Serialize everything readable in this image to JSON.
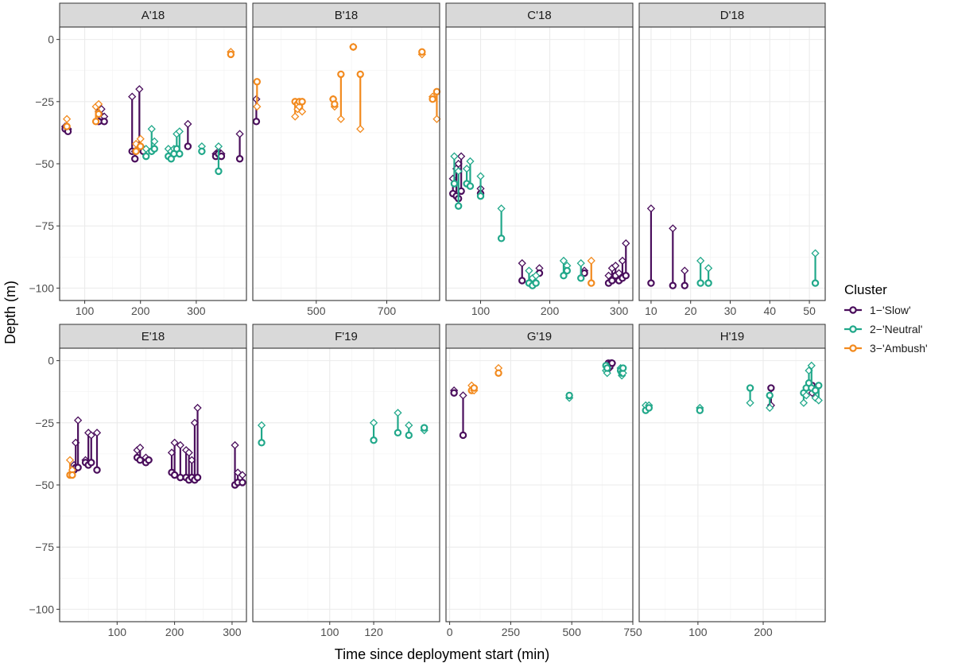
{
  "chart_data": {
    "type": "scatter",
    "layout": "faceted 2x4 small multiples, free x scales, shared y scale",
    "xlabel": "Time since deployment start (min)",
    "ylabel": "Depth (m)",
    "ylim": [
      -105,
      5
    ],
    "yticks": [
      0,
      -25,
      -50,
      -75,
      -100
    ],
    "ytick_labels": [
      "0",
      "−25",
      "−50",
      "−75",
      "−100"
    ],
    "grid": true,
    "marker_note": "circle = start depth, diamond = end depth, connected by a vertical segment",
    "legend": {
      "title": "Cluster",
      "position": "right",
      "entries": [
        {
          "label": "1−'Slow'",
          "color": "#4A0E5C"
        },
        {
          "label": "2−'Neutral'",
          "color": "#21A88A"
        },
        {
          "label": "3−'Ambush'",
          "color": "#F28A1E"
        }
      ]
    },
    "panels": [
      {
        "title": "A'18",
        "xlim": [
          55,
          390
        ],
        "xticks": [
          100,
          200,
          300
        ],
        "series": [
          {
            "cluster": "1−'Slow'",
            "points": [
              [
                65,
                -36,
                -35
              ],
              [
                70,
                -37,
                -36
              ],
              [
                125,
                -33,
                -29
              ],
              [
                130,
                -31,
                -28
              ],
              [
                135,
                -33,
                -31
              ],
              [
                185,
                -45,
                -23
              ],
              [
                190,
                -48,
                -45
              ],
              [
                198,
                -44,
                -20
              ],
              [
                205,
                -45,
                -44
              ],
              [
                285,
                -43,
                -34
              ],
              [
                335,
                -47,
                -46
              ],
              [
                340,
                -46,
                -45
              ],
              [
                345,
                -47,
                -46
              ],
              [
                378,
                -48,
                -38
              ]
            ]
          },
          {
            "cluster": "2−'Neutral'",
            "points": [
              [
                210,
                -47,
                -44
              ],
              [
                220,
                -45,
                -36
              ],
              [
                225,
                -44,
                -41
              ],
              [
                250,
                -47,
                -44
              ],
              [
                255,
                -48,
                -45
              ],
              [
                260,
                -46,
                -44
              ],
              [
                265,
                -44,
                -38
              ],
              [
                270,
                -46,
                -37
              ],
              [
                310,
                -45,
                -43
              ],
              [
                340,
                -53,
                -43
              ]
            ]
          },
          {
            "cluster": "3−'Ambush'",
            "points": [
              [
                68,
                -35,
                -32
              ],
              [
                120,
                -33,
                -27
              ],
              [
                125,
                -30,
                -26
              ],
              [
                192,
                -45,
                -42
              ],
              [
                200,
                -43,
                -40
              ],
              [
                362,
                -6,
                -5
              ]
            ]
          }
        ]
      },
      {
        "title": "B'18",
        "xlim": [
          320,
          850
        ],
        "xticks": [
          500,
          700
        ],
        "series": [
          {
            "cluster": "1−'Slow'",
            "points": [
              [
                330,
                -33,
                -24
              ]
            ]
          },
          {
            "cluster": "3−'Ambush'",
            "points": [
              [
                332,
                -17,
                -27
              ],
              [
                440,
                -25,
                -31
              ],
              [
                447,
                -26,
                -28
              ],
              [
                452,
                -25,
                -27
              ],
              [
                460,
                -25,
                -29
              ],
              [
                548,
                -24,
                -24
              ],
              [
                552,
                -26,
                -27
              ],
              [
                570,
                -14,
                -32
              ],
              [
                605,
                -3,
                -3
              ],
              [
                625,
                -14,
                -36
              ],
              [
                800,
                -5,
                -6
              ],
              [
                830,
                -24,
                -23
              ],
              [
                842,
                -21,
                -32
              ]
            ]
          }
        ]
      },
      {
        "title": "C'18",
        "xlim": [
          50,
          320
        ],
        "xticks": [
          100,
          200,
          300
        ],
        "series": [
          {
            "cluster": "1−'Slow'",
            "points": [
              [
                60,
                -62,
                -56
              ],
              [
                65,
                -63,
                -52
              ],
              [
                68,
                -64,
                -50
              ],
              [
                72,
                -61,
                -47
              ],
              [
                100,
                -62,
                -60
              ],
              [
                160,
                -97,
                -90
              ],
              [
                185,
                -94,
                -92
              ],
              [
                250,
                -94,
                -93
              ],
              [
                285,
                -98,
                -95
              ],
              [
                290,
                -97,
                -92
              ],
              [
                295,
                -95,
                -91
              ],
              [
                300,
                -97,
                -94
              ],
              [
                305,
                -96,
                -89
              ],
              [
                310,
                -95,
                -82
              ]
            ]
          },
          {
            "cluster": "2−'Neutral'",
            "points": [
              [
                62,
                -58,
                -47
              ],
              [
                68,
                -67,
                -53
              ],
              [
                80,
                -58,
                -52
              ],
              [
                85,
                -59,
                -49
              ],
              [
                100,
                -63,
                -55
              ],
              [
                130,
                -80,
                -68
              ],
              [
                170,
                -98,
                -93
              ],
              [
                175,
                -99,
                -96
              ],
              [
                180,
                -98,
                -95
              ],
              [
                220,
                -95,
                -89
              ],
              [
                225,
                -93,
                -91
              ],
              [
                245,
                -96,
                -90
              ]
            ]
          },
          {
            "cluster": "3−'Ambush'",
            "points": [
              [
                260,
                -98,
                -89
              ]
            ]
          }
        ]
      },
      {
        "title": "D'18",
        "xlim": [
          7,
          54
        ],
        "xticks": [
          10,
          20,
          30,
          40,
          50
        ],
        "series": [
          {
            "cluster": "1−'Slow'",
            "points": [
              [
                10,
                -98,
                -68
              ],
              [
                15.5,
                -99,
                -76
              ],
              [
                18.5,
                -99,
                -93
              ]
            ]
          },
          {
            "cluster": "2−'Neutral'",
            "points": [
              [
                22.5,
                -98,
                -89
              ],
              [
                24.5,
                -98,
                -92
              ],
              [
                51.5,
                -98,
                -86
              ]
            ]
          }
        ]
      },
      {
        "title": "E'18",
        "xlim": [
          0,
          325
        ],
        "xticks": [
          100,
          200,
          300
        ],
        "series": [
          {
            "cluster": "1−'Slow'",
            "points": [
              [
                25,
                -44,
                -42
              ],
              [
                28,
                -43,
                -33
              ],
              [
                32,
                -43,
                -24
              ],
              [
                45,
                -41,
                -40
              ],
              [
                50,
                -42,
                -29
              ],
              [
                55,
                -41,
                -30
              ],
              [
                65,
                -44,
                -29
              ],
              [
                135,
                -39,
                -36
              ],
              [
                140,
                -40,
                -35
              ],
              [
                150,
                -41,
                -39
              ],
              [
                155,
                -40,
                -40
              ],
              [
                195,
                -45,
                -37
              ],
              [
                200,
                -46,
                -33
              ],
              [
                210,
                -47,
                -34
              ],
              [
                220,
                -47,
                -36
              ],
              [
                225,
                -48,
                -37
              ],
              [
                230,
                -47,
                -40
              ],
              [
                235,
                -48,
                -25
              ],
              [
                240,
                -47,
                -19
              ],
              [
                305,
                -50,
                -34
              ],
              [
                310,
                -49,
                -45
              ],
              [
                318,
                -49,
                -46
              ]
            ]
          },
          {
            "cluster": "3−'Ambush'",
            "points": [
              [
                18,
                -46,
                -40
              ],
              [
                22,
                -46,
                -44
              ]
            ]
          }
        ]
      },
      {
        "title": "F'19",
        "xlim": [
          65,
          150
        ],
        "xticks": [
          100,
          120
        ],
        "series": [
          {
            "cluster": "2−'Neutral'",
            "points": [
              [
                69,
                -33,
                -26
              ],
              [
                120,
                -32,
                -25
              ],
              [
                131,
                -29,
                -21
              ],
              [
                136,
                -30,
                -26
              ],
              [
                143,
                -27,
                -28
              ]
            ]
          }
        ]
      },
      {
        "title": "G'19",
        "xlim": [
          -15,
          750
        ],
        "xticks": [
          0,
          250,
          500,
          750
        ],
        "series": [
          {
            "cluster": "1−'Slow'",
            "points": [
              [
                18,
                -13,
                -12
              ],
              [
                55,
                -30,
                -14
              ],
              [
                650,
                -1,
                -2
              ],
              [
                655,
                -2,
                -3
              ],
              [
                660,
                -1,
                -2
              ],
              [
                665,
                -1,
                -1
              ]
            ]
          },
          {
            "cluster": "2−'Neutral'",
            "points": [
              [
                490,
                -14,
                -15
              ],
              [
                640,
                -2,
                -4
              ],
              [
                645,
                -3,
                -5
              ],
              [
                700,
                -4,
                -3
              ],
              [
                705,
                -5,
                -6
              ],
              [
                710,
                -3,
                -5
              ]
            ]
          },
          {
            "cluster": "3−'Ambush'",
            "points": [
              [
                90,
                -12,
                -10
              ],
              [
                100,
                -11,
                -12
              ],
              [
                200,
                -5,
                -3
              ]
            ]
          }
        ]
      },
      {
        "title": "H'19",
        "xlim": [
          10,
          295
        ],
        "xticks": [
          100,
          200
        ],
        "series": [
          {
            "cluster": "1−'Slow'",
            "points": [
              [
                212,
                -11,
                -18
              ],
              [
                275,
                -10,
                -13
              ]
            ]
          },
          {
            "cluster": "2−'Neutral'",
            "points": [
              [
                20,
                -20,
                -18
              ],
              [
                25,
                -19,
                -18
              ],
              [
                103,
                -20,
                -19
              ],
              [
                180,
                -11,
                -17
              ],
              [
                210,
                -14,
                -19
              ],
              [
                262,
                -13,
                -17
              ],
              [
                266,
                -11,
                -14
              ],
              [
                270,
                -9,
                -4
              ],
              [
                274,
                -11,
                -2
              ],
              [
                280,
                -12,
                -15
              ],
              [
                285,
                -10,
                -16
              ]
            ]
          }
        ]
      }
    ]
  }
}
